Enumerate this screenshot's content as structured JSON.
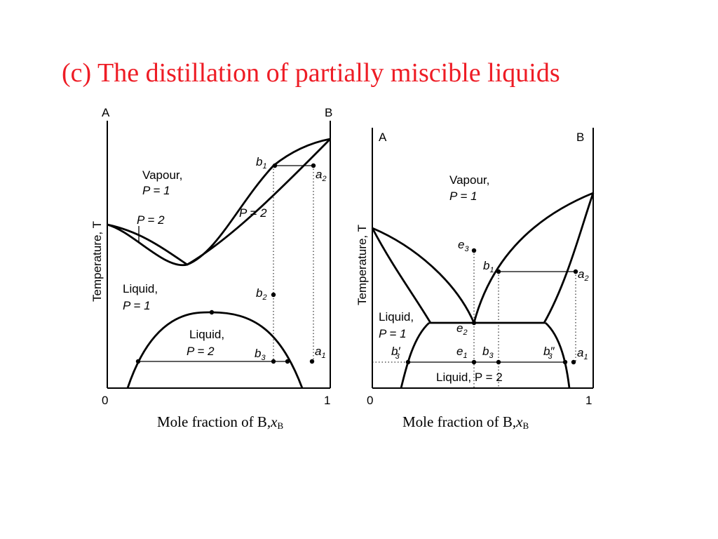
{
  "title": "(c) The distillation of partially miscible liquids",
  "left_diagram": {
    "corner_a": "A",
    "corner_b": "B",
    "y_axis_label": "Temperature, T",
    "x_min": "0",
    "x_max": "1",
    "vapour_line1": "Vapour,",
    "vapour_line2": "P = 1",
    "p2_left": "P = 2",
    "p2_right": "P = 2",
    "liquid1_line1": "Liquid,",
    "liquid1_line2": "P = 1",
    "liquid2_line1": "Liquid,",
    "liquid2_line2": "P = 2",
    "points": {
      "b1": {
        "letter": "b",
        "sub": "1"
      },
      "a2": {
        "letter": "a",
        "sub": "2"
      },
      "b2": {
        "letter": "b",
        "sub": "2"
      },
      "b3": {
        "letter": "b",
        "sub": "3"
      },
      "a1": {
        "letter": "a",
        "sub": "1"
      }
    },
    "caption_text": "Mole fraction of B,",
    "caption_var": "x",
    "caption_sub": "B"
  },
  "right_diagram": {
    "corner_a": "A",
    "corner_b": "B",
    "y_axis_label": "Temperature, T",
    "x_min": "0",
    "x_max": "1",
    "vapour_line1": "Vapour,",
    "vapour_line2": "P = 1",
    "liquid1_line1": "Liquid,",
    "liquid1_line2": "P = 1",
    "liquid2_label": "Liquid, P = 2",
    "points": {
      "e3": {
        "letter": "e",
        "sub": "3"
      },
      "b1": {
        "letter": "b",
        "sub": "1"
      },
      "a2": {
        "letter": "a",
        "sub": "2"
      },
      "e2": {
        "letter": "e",
        "sub": "2"
      },
      "b3p": {
        "letter": "b",
        "sub": "3",
        "mark": "′"
      },
      "e1": {
        "letter": "e",
        "sub": "1"
      },
      "b3": {
        "letter": "b",
        "sub": "3"
      },
      "b3pp": {
        "letter": "b",
        "sub": "3",
        "mark": "″"
      },
      "a1": {
        "letter": "a",
        "sub": "1"
      }
    },
    "caption_text": "Mole fraction of B,",
    "caption_var": "x",
    "caption_sub": "B"
  }
}
